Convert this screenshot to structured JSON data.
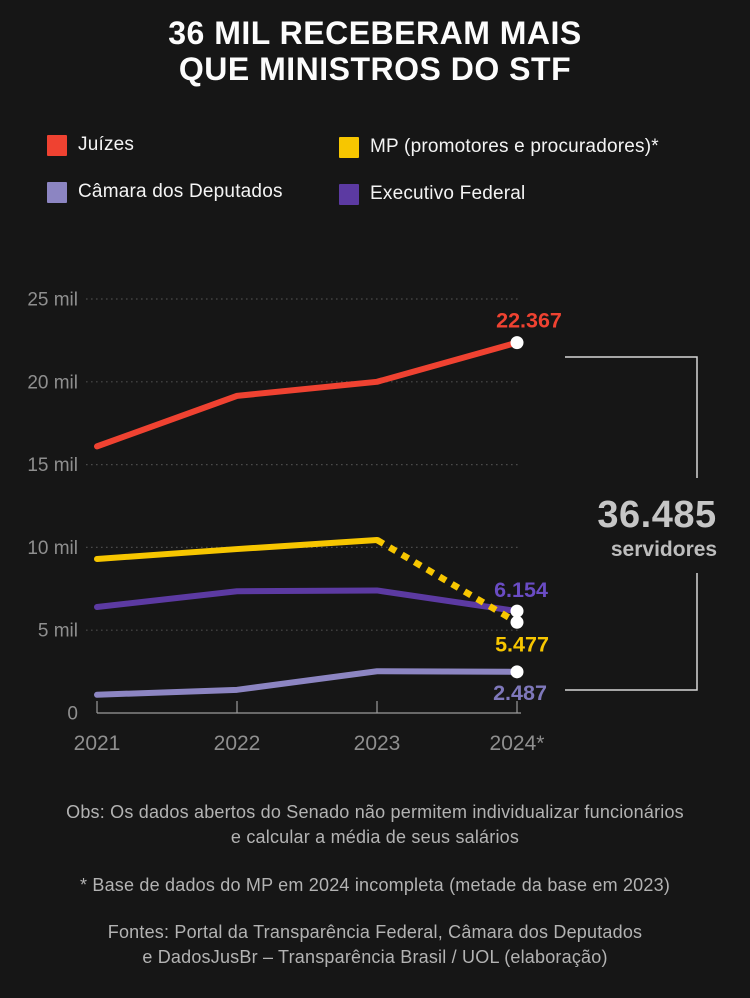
{
  "title": "36 MIL RECEBERAM MAIS\nQUE MINISTROS DO STF",
  "legend": {
    "items": [
      {
        "key": "juizes",
        "label": "Juízes",
        "color": "#ef4231"
      },
      {
        "key": "mp",
        "label": "MP (promotores e procuradores)*",
        "color": "#f7c600"
      },
      {
        "key": "camara",
        "label": "Câmara dos Deputados",
        "color": "#8c85c2"
      },
      {
        "key": "executivo",
        "label": "Executivo Federal",
        "color": "#5c3aa2"
      }
    ]
  },
  "chart_data": {
    "type": "line",
    "title": "36 MIL RECEBERAM MAIS QUE MINISTROS DO STF",
    "x": [
      "2021",
      "2022",
      "2023",
      "2024*"
    ],
    "series": [
      {
        "key": "juizes",
        "name": "Juízes",
        "color": "#ef4231",
        "values": [
          16100,
          19150,
          20000,
          22367
        ],
        "end_label": "22.367",
        "end_label_color": "#ef4231"
      },
      {
        "key": "mp",
        "name": "MP (promotores e procuradores)*",
        "color": "#f7c600",
        "values": [
          9300,
          9900,
          10450,
          5477
        ],
        "dashed_from_index": 2,
        "end_label": "5.477",
        "end_label_color": "#f7c600"
      },
      {
        "key": "executivo",
        "name": "Executivo Federal",
        "color": "#5c3aa2",
        "values": [
          6400,
          7350,
          7400,
          6154
        ],
        "end_label": "6.154",
        "end_label_color": "#6a4cc4"
      },
      {
        "key": "camara",
        "name": "Câmara dos Deputados",
        "color": "#8c85c2",
        "values": [
          1100,
          1400,
          2520,
          2487
        ],
        "end_label": "2.487",
        "end_label_color": "#7f78bb"
      }
    ],
    "yticks": [
      {
        "value": 0,
        "label": "0"
      },
      {
        "value": 5000,
        "label": "5 mil"
      },
      {
        "value": 10000,
        "label": "10 mil"
      },
      {
        "value": 15000,
        "label": "15 mil"
      },
      {
        "value": 20000,
        "label": "20 mil"
      },
      {
        "value": 25000,
        "label": "25 mil"
      }
    ],
    "ylim": [
      0,
      25000
    ],
    "grid": "horizontal-dotted",
    "legend_position": "top"
  },
  "annotation": {
    "total": "36.485",
    "label": "servidores"
  },
  "footnotes": [
    "Obs: Os dados abertos do Senado não permitem individualizar funcionários\ne calcular a média de seus salários",
    "* Base de dados do MP em 2024 incompleta (metade da base em 2023)",
    "Fontes: Portal da Transparência Federal, Câmara dos Deputados\ne DadosJusBr – Transparência Brasil / UOL (elaboração)"
  ],
  "colors": {
    "background": "#161616",
    "title_text": "#fcfcfc",
    "axis_text": "#8f8f8f",
    "gridline": "#4a4a4a",
    "axis_line": "#9b9b9b",
    "bracket": "#d6d6d6",
    "annotation_text": "#c6c6c6",
    "footnote_text": "#b3b3b3",
    "endpoint_dot": "#ffffff"
  }
}
